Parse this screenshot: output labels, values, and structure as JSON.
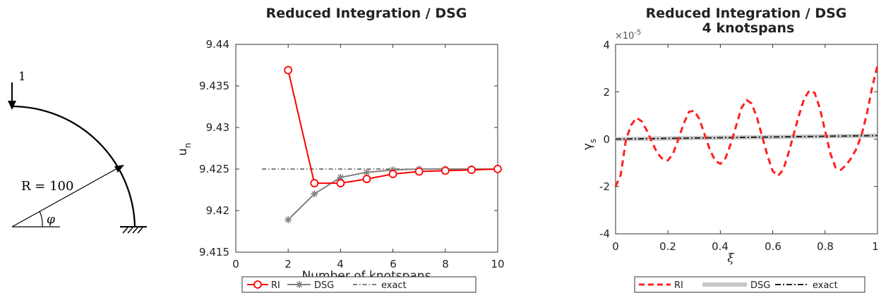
{
  "sketch": {
    "load_label": "1",
    "radius_label": "R = 100",
    "angle_label": "φ"
  },
  "chart_data": [
    {
      "type": "line",
      "title": "Reduced Integration / DSG",
      "xlabel": "Number of knotspans",
      "ylabel": "u",
      "ylabel_sub": "n",
      "xlim": [
        0,
        10
      ],
      "ylim": [
        9.415,
        9.44
      ],
      "xticks": [
        "0",
        "2",
        "4",
        "6",
        "8",
        "10"
      ],
      "yticks": [
        "9.415",
        "9.42",
        "9.425",
        "9.43",
        "9.435",
        "9.44"
      ],
      "grid": false,
      "legend_position": "bottom-outside",
      "series": [
        {
          "name": "RI",
          "color": "#ff0000",
          "marker": "circle",
          "x": [
            2,
            3,
            4,
            5,
            6,
            7,
            8,
            9,
            10
          ],
          "y": [
            9.4369,
            9.4233,
            9.4233,
            9.4238,
            9.4244,
            9.4247,
            9.4248,
            9.4249,
            9.425
          ]
        },
        {
          "name": "DSG",
          "color": "#808080",
          "marker": "asterisk",
          "x": [
            2,
            3,
            4,
            5,
            6,
            7,
            8,
            9,
            10
          ],
          "y": [
            9.4189,
            9.422,
            9.424,
            9.4246,
            9.4249,
            9.425,
            9.425,
            9.425,
            9.425
          ]
        },
        {
          "name": "exact",
          "color": "#333333",
          "style": "dashdot",
          "x": [
            1,
            10
          ],
          "y": [
            9.425,
            9.425
          ]
        }
      ]
    },
    {
      "type": "line",
      "title": "Reduced Integration / DSG",
      "subtitle": "4 knotspans",
      "xlabel": "ξ",
      "ylabel": "γ",
      "ylabel_sub": "s",
      "exponent_label": "×10",
      "exponent_power": "-5",
      "xlim": [
        0,
        1
      ],
      "ylim": [
        -4,
        4
      ],
      "xticks": [
        "0",
        "0.2",
        "0.4",
        "0.6",
        "0.8",
        "1"
      ],
      "yticks": [
        "-4",
        "-2",
        "0",
        "2",
        "4"
      ],
      "grid": false,
      "legend_position": "bottom-outside",
      "series": [
        {
          "name": "RI",
          "color": "#ff2020",
          "style": "dashed",
          "x": [
            0,
            0.02,
            0.04,
            0.06,
            0.08,
            0.1,
            0.12,
            0.14,
            0.16,
            0.18,
            0.2,
            0.22,
            0.24,
            0.26,
            0.28,
            0.3,
            0.32,
            0.34,
            0.36,
            0.38,
            0.4,
            0.42,
            0.44,
            0.46,
            0.48,
            0.5,
            0.52,
            0.54,
            0.56,
            0.58,
            0.6,
            0.62,
            0.64,
            0.66,
            0.68,
            0.7,
            0.72,
            0.74,
            0.76,
            0.78,
            0.8,
            0.82,
            0.84,
            0.86,
            0.88,
            0.9,
            0.92,
            0.94,
            0.96,
            0.98,
            1.0
          ],
          "y": [
            -2.0,
            -1.5,
            0.0,
            0.6,
            0.9,
            0.75,
            0.35,
            -0.15,
            -0.6,
            -0.85,
            -0.9,
            -0.6,
            0.0,
            0.65,
            1.15,
            1.2,
            0.85,
            0.2,
            -0.45,
            -0.9,
            -1.05,
            -0.8,
            -0.2,
            0.55,
            1.3,
            1.65,
            1.5,
            0.9,
            0.1,
            -0.7,
            -1.35,
            -1.55,
            -1.3,
            -0.6,
            0.2,
            1.0,
            1.7,
            2.05,
            1.95,
            1.3,
            0.35,
            -0.6,
            -1.2,
            -1.3,
            -1.1,
            -0.8,
            -0.4,
            0.2,
            1.1,
            2.2,
            3.1
          ]
        },
        {
          "name": "DSG",
          "color": "#c8c8c8",
          "style": "thick",
          "x": [
            0,
            1
          ],
          "y": [
            0.0,
            0.15
          ]
        },
        {
          "name": "exact",
          "color": "#222222",
          "style": "dashdot",
          "x": [
            0,
            1
          ],
          "y": [
            0.0,
            0.15
          ]
        }
      ]
    }
  ]
}
